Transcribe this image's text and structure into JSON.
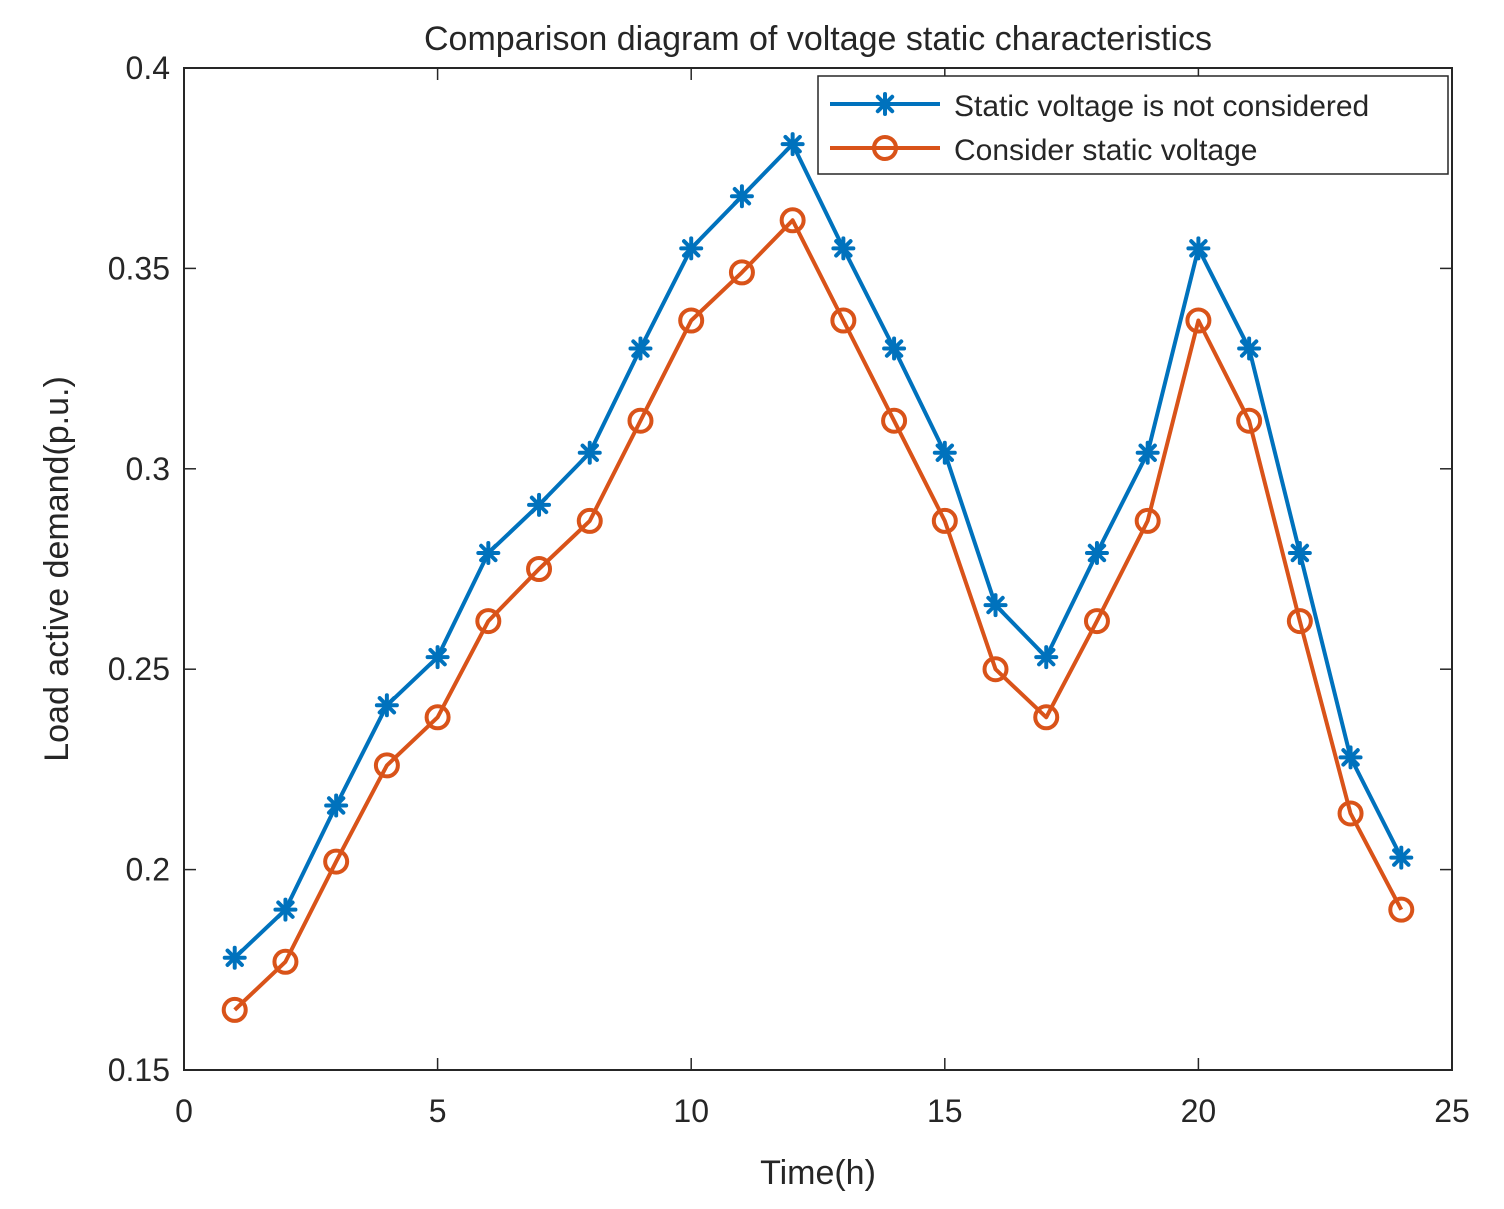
{
  "chart_data": {
    "type": "line",
    "title": "Comparison diagram of voltage static characteristics",
    "xlabel": "Time(h)",
    "ylabel": "Load active demand(p.u.)",
    "xlim": [
      0,
      25
    ],
    "ylim": [
      0.15,
      0.4
    ],
    "xticks": [
      0,
      5,
      10,
      15,
      20,
      25
    ],
    "yticks": [
      0.15,
      0.2,
      0.25,
      0.3,
      0.35,
      0.4
    ],
    "xtick_labels": [
      "0",
      "5",
      "10",
      "15",
      "20",
      "25"
    ],
    "ytick_labels": [
      "0.15",
      "0.2",
      "0.25",
      "0.3",
      "0.35",
      "0.4"
    ],
    "grid": false,
    "legend_position": "top-right",
    "x": [
      1,
      2,
      3,
      4,
      5,
      6,
      7,
      8,
      9,
      10,
      11,
      12,
      13,
      14,
      15,
      16,
      17,
      18,
      19,
      20,
      21,
      22,
      23,
      24
    ],
    "series": [
      {
        "name": "Static voltage is not considered",
        "color": "#0072BD",
        "marker": "asterisk",
        "values": [
          0.178,
          0.19,
          0.216,
          0.241,
          0.253,
          0.279,
          0.291,
          0.304,
          0.33,
          0.355,
          0.368,
          0.381,
          0.355,
          0.33,
          0.304,
          0.266,
          0.253,
          0.279,
          0.304,
          0.355,
          0.33,
          0.279,
          0.228,
          0.203
        ]
      },
      {
        "name": "Consider static voltage",
        "color": "#D95319",
        "marker": "circle",
        "values": [
          0.165,
          0.177,
          0.202,
          0.226,
          0.238,
          0.262,
          0.275,
          0.287,
          0.312,
          0.337,
          0.349,
          0.362,
          0.337,
          0.312,
          0.287,
          0.25,
          0.238,
          0.262,
          0.287,
          0.337,
          0.312,
          0.262,
          0.214,
          0.19
        ]
      }
    ]
  }
}
